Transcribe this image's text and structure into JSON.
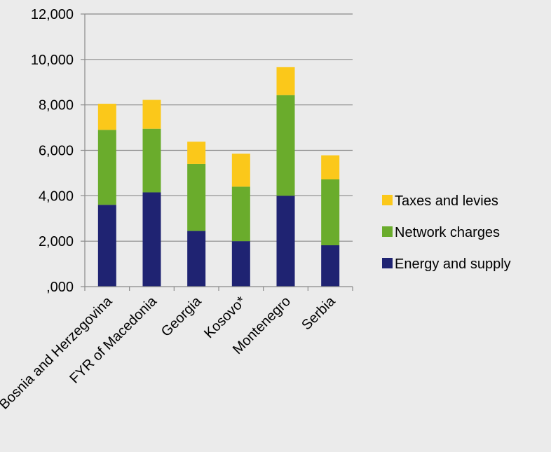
{
  "chart_data": {
    "type": "bar",
    "stacked": true,
    "categories": [
      "Bosnia and Herzegovina",
      "FYR of Macedonia",
      "Georgia",
      "Kosovo*",
      "Montenegro",
      "Serbia"
    ],
    "series": [
      {
        "name": "Energy and supply",
        "color": "#1f2372",
        "values": [
          3600,
          4150,
          2450,
          2000,
          4000,
          1820
        ]
      },
      {
        "name": "Network charges",
        "color": "#6aac2c",
        "values": [
          3300,
          2800,
          2950,
          2400,
          4430,
          2900
        ]
      },
      {
        "name": "Taxes and levies",
        "color": "#fbc81a",
        "values": [
          1150,
          1270,
          980,
          1450,
          1230,
          1060
        ]
      }
    ],
    "yticks": [
      ",000",
      "2,000",
      "4,000",
      "6,000",
      "8,000",
      "10,000",
      "12,000"
    ],
    "ylim": [
      0,
      12000
    ],
    "grid": true,
    "legend": "right"
  }
}
